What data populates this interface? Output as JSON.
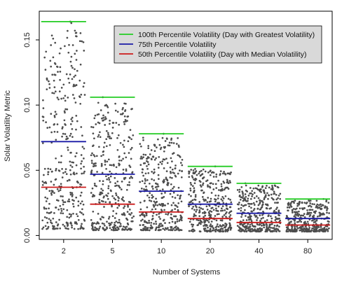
{
  "chart_data": {
    "type": "scatter",
    "title": "",
    "xlabel": "Number of Systems",
    "ylabel": "Solar Volatility Metric",
    "categories": [
      "2",
      "5",
      "10",
      "20",
      "40",
      "80"
    ],
    "ylim": [
      -0.003,
      0.172
    ],
    "yticks": [
      0.0,
      0.05,
      0.1,
      0.15
    ],
    "ytick_labels": [
      "0.00",
      "0.05",
      "0.10",
      "0.15"
    ],
    "grid": false,
    "legend_position": "top-right",
    "percentile_lines": [
      {
        "name": "100th Percentile Volatility (Day with Greatest Volatility)",
        "color": "#22cc22",
        "values": [
          0.164,
          0.106,
          0.078,
          0.053,
          0.04,
          0.028
        ]
      },
      {
        "name": "75th Percentile Volatility",
        "color": "#1a1aa6",
        "values": [
          0.072,
          0.047,
          0.034,
          0.024,
          0.017,
          0.013
        ]
      },
      {
        "name": "50th Percentile Volatility (Day with Median Volatility)",
        "color": "#cc1a1a",
        "values": [
          0.037,
          0.024,
          0.018,
          0.013,
          0.01,
          0.008
        ]
      }
    ],
    "point_color": "#4d4d4d",
    "points_per_group": 365,
    "group_point_ranges": [
      {
        "min": 0.005,
        "max": 0.164
      },
      {
        "min": 0.004,
        "max": 0.106
      },
      {
        "min": 0.004,
        "max": 0.078
      },
      {
        "min": 0.003,
        "max": 0.053
      },
      {
        "min": 0.003,
        "max": 0.04
      },
      {
        "min": 0.003,
        "max": 0.028
      }
    ]
  }
}
